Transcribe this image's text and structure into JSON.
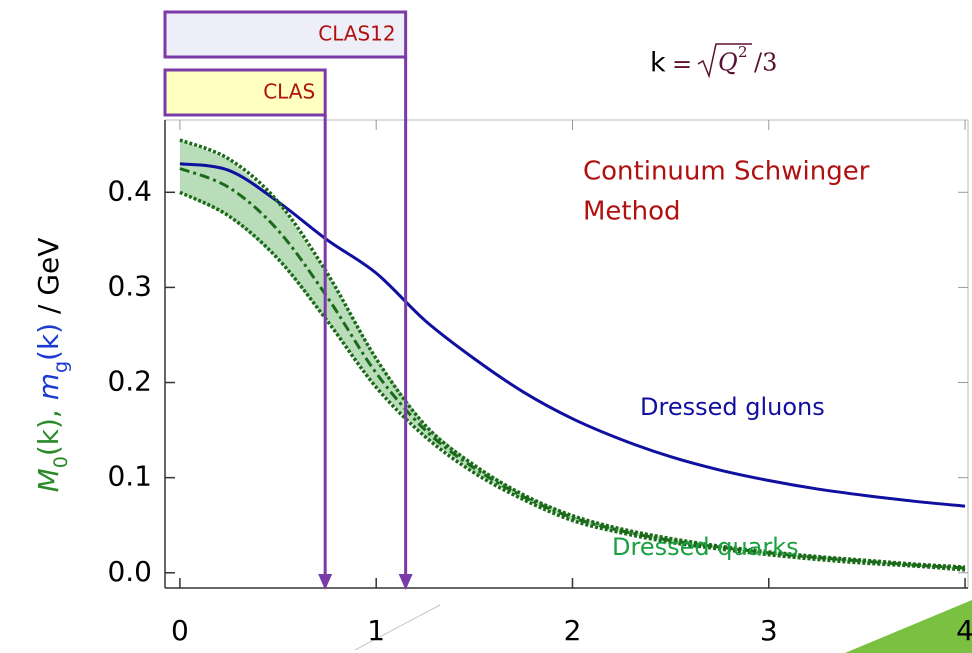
{
  "chart_data": {
    "type": "line",
    "ylabel": [
      {
        "text": "M",
        "color": "#2a8a2a",
        "italic": true
      },
      {
        "text": "0",
        "color": "#2a8a2a",
        "sub": true
      },
      {
        "text": "(k), ",
        "color": "#2a8a2a"
      },
      {
        "text": "m",
        "color": "#1a3ad0",
        "italic": true
      },
      {
        "text": "g",
        "color": "#1a3ad0",
        "sub": true
      },
      {
        "text": "(k)",
        "color": "#1a3ad0"
      },
      {
        "text": " / GeV",
        "color": "#000000"
      }
    ],
    "formula": {
      "lhs": "k",
      "eq": "=",
      "var": "Q",
      "power": "2",
      "rest": "/3"
    },
    "method_label": [
      "Continuum Schwinger",
      "Method"
    ],
    "ranges": [
      {
        "label": "CLAS12",
        "x": 1.15,
        "fill": "#eeeef8"
      },
      {
        "label": "CLAS",
        "x": 0.74,
        "fill": "#ffffc0"
      }
    ],
    "x": [
      0,
      0.25,
      0.5,
      0.75,
      1,
      1.25,
      1.5,
      1.75,
      2,
      2.25,
      2.5,
      2.75,
      3,
      3.25,
      3.5,
      3.75,
      4
    ],
    "series": [
      {
        "name": "Dressed gluons",
        "color": "#1010a0",
        "values": [
          0.43,
          0.423,
          0.39,
          0.35,
          0.315,
          0.265,
          0.225,
          0.19,
          0.162,
          0.14,
          0.122,
          0.108,
          0.097,
          0.088,
          0.081,
          0.075,
          0.07
        ]
      },
      {
        "name": "Dressed quarks",
        "color": "#1a6a1a",
        "values": [
          0.425,
          0.405,
          0.36,
          0.29,
          0.21,
          0.15,
          0.11,
          0.08,
          0.058,
          0.044,
          0.034,
          0.027,
          0.021,
          0.016,
          0.012,
          0.008,
          0.005
        ]
      },
      {
        "color": "#1a6a1a",
        "values": [
          0.455,
          0.435,
          0.39,
          0.315,
          0.225,
          0.155,
          0.113,
          0.082,
          0.06,
          0.046,
          0.036,
          0.028,
          0.022,
          0.017,
          0.013,
          0.009,
          0.006
        ]
      },
      {
        "color": "#1a6a1a",
        "values": [
          0.4,
          0.375,
          0.33,
          0.265,
          0.195,
          0.143,
          0.105,
          0.077,
          0.055,
          0.042,
          0.032,
          0.025,
          0.019,
          0.014,
          0.01,
          0.007,
          0.003
        ]
      }
    ],
    "band_color": "#a8d4a8",
    "xlim": [
      -0.076,
      4.015
    ],
    "ylim": [
      -0.016,
      0.476
    ],
    "xticks": [
      0,
      1,
      2,
      3,
      4
    ],
    "yticks": [
      {
        "value": 0,
        "label": "0.0"
      },
      {
        "value": 0.1,
        "label": "0.1"
      },
      {
        "value": 0.2,
        "label": "0.2"
      },
      {
        "value": 0.3,
        "label": "0.3"
      },
      {
        "value": 0.4,
        "label": "0.4"
      }
    ]
  }
}
